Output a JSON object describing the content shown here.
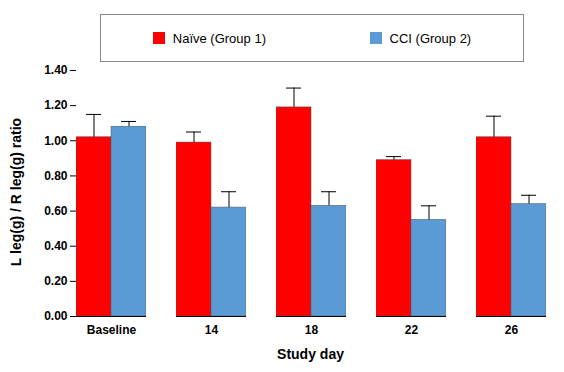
{
  "chart_data": {
    "type": "bar",
    "x_label": "Study day",
    "y_label": "L leg(g) / R leg(g) ratio",
    "categories": [
      "Baseline",
      "14",
      "18",
      "22",
      "26"
    ],
    "series": [
      {
        "name": "Naïve (Group 1)",
        "color": "#ff0000",
        "values": [
          1.02,
          0.99,
          1.19,
          0.89,
          1.02
        ],
        "errors": [
          0.13,
          0.06,
          0.11,
          0.02,
          0.12
        ]
      },
      {
        "name": "CCI (Group 2)",
        "color": "#5b9bd5",
        "values": [
          1.08,
          0.62,
          0.63,
          0.55,
          0.64
        ],
        "errors": [
          0.03,
          0.09,
          0.08,
          0.08,
          0.05
        ]
      }
    ],
    "ylim": [
      0,
      1.4
    ],
    "yticks": [
      {
        "value": 0,
        "label": "0.00"
      },
      {
        "value": 0.2,
        "label": "0.20"
      },
      {
        "value": 0.4,
        "label": "0.40"
      },
      {
        "value": 0.6,
        "label": "0.60"
      },
      {
        "value": 0.8,
        "label": "0.80"
      },
      {
        "value": 1.0,
        "label": "1.00"
      },
      {
        "value": 1.2,
        "label": "1.20"
      },
      {
        "value": 1.4,
        "label": "1.40"
      }
    ],
    "grid": false,
    "legend": "top"
  }
}
